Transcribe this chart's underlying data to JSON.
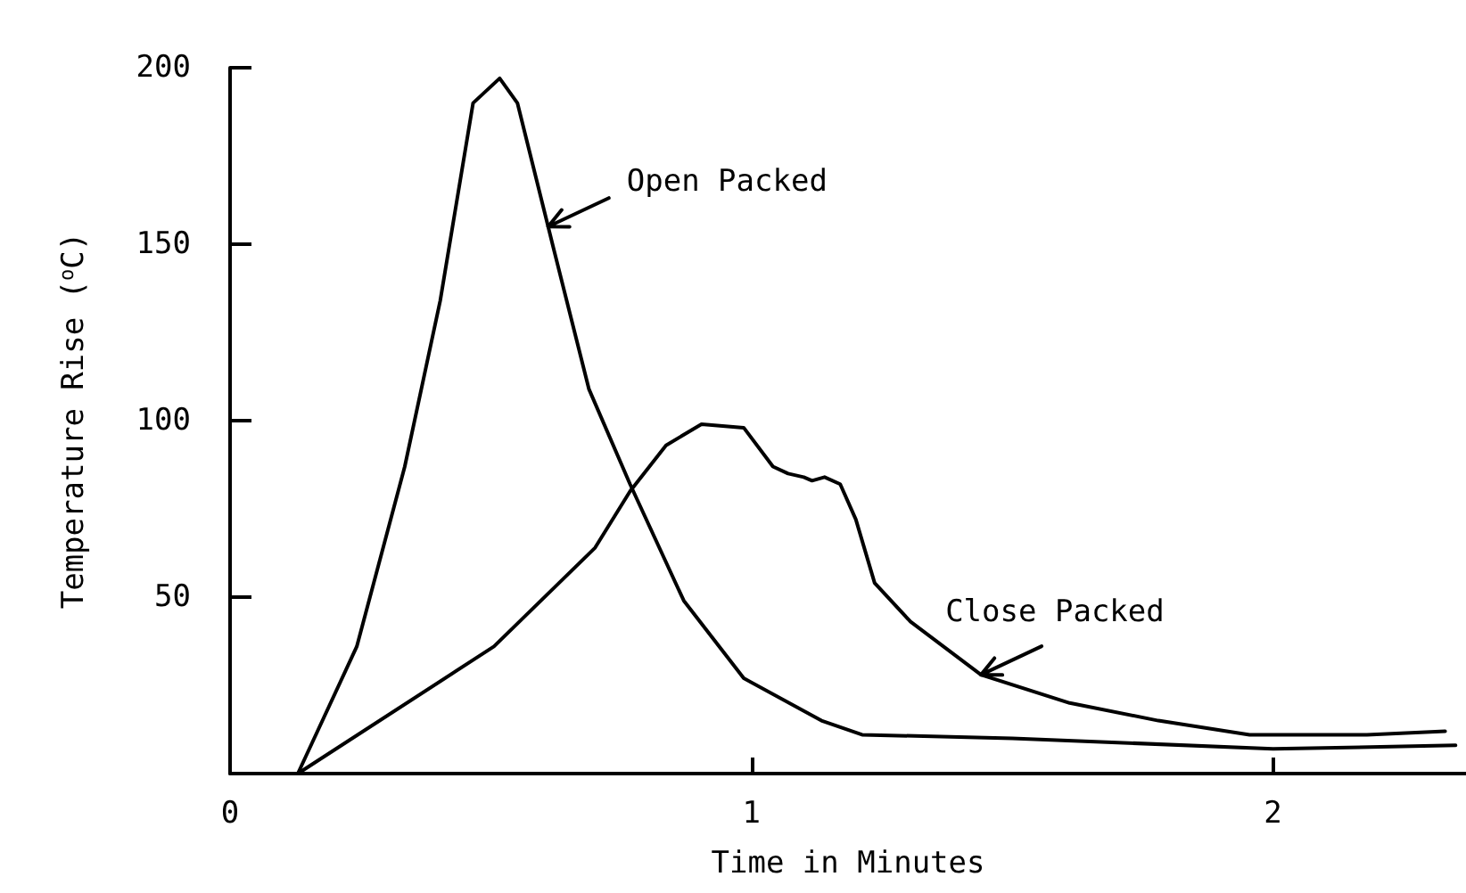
{
  "chart_data": {
    "type": "line",
    "xlabel": "Time in Minutes",
    "ylabel": "Temperature Rise ($^{o}$C)",
    "xlim": [
      0,
      2.37
    ],
    "xticks": [
      0,
      1,
      2
    ],
    "ylim": [
      0,
      200
    ],
    "yticks": [
      50,
      100,
      150,
      200
    ],
    "grid": false,
    "marker": "none",
    "line_style": "solid",
    "series": [
      {
        "color": "#000000",
        "x": [
          0.13,
          0.243,
          0.335,
          0.403,
          0.466,
          0.517,
          0.551,
          0.62,
          0.688,
          0.767,
          0.87,
          0.985,
          1.134,
          1.212,
          1.5,
          2.0,
          2.35
        ],
        "values": [
          0,
          36,
          87,
          134,
          190,
          197,
          190,
          149,
          109,
          82,
          49,
          27,
          15,
          11,
          10,
          7,
          8
        ]
      },
      {
        "color": "#000000",
        "x": [
          0.13,
          0.506,
          0.7,
          0.767,
          0.836,
          0.904,
          0.985,
          1.041,
          1.07,
          1.1,
          1.116,
          1.14,
          1.17,
          1.2,
          1.236,
          1.305,
          1.44,
          1.61,
          1.78,
          1.955,
          2.18,
          2.33
        ],
        "values": [
          0,
          36,
          64,
          80,
          93,
          99,
          98,
          87,
          85,
          84,
          83,
          84,
          82,
          72,
          54,
          43,
          28,
          20,
          15,
          11,
          11,
          12
        ]
      }
    ],
    "annotations": [
      {
        "text": "Open Packed",
        "x": 0.61,
        "y": 155
      },
      {
        "text": "Close Packed",
        "x": 1.44,
        "y": 28
      }
    ]
  }
}
